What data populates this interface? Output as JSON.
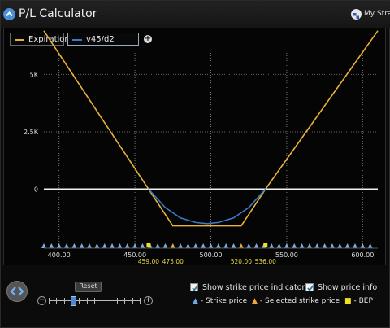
{
  "window": {
    "title": "P/L Calculator",
    "right_label": "My Stra",
    "app_icon": "caret-up-icon",
    "right_icon": "strategy-icon"
  },
  "legend": {
    "items": [
      {
        "label": "Expiration",
        "color": "#e8b23a"
      },
      {
        "label": "v45/d2",
        "color": "#3c78c8"
      }
    ],
    "add_icon": "plus-icon"
  },
  "chart_data": {
    "type": "line",
    "x_ticks": [
      "400.00",
      "450.00",
      "500.00",
      "550.00",
      "600.00"
    ],
    "y_ticks": [
      "5K",
      "2.5K",
      "0"
    ],
    "xlim": [
      390,
      610
    ],
    "ylim": [
      -2500,
      7000
    ],
    "series": [
      {
        "name": "Expiration",
        "color": "#e8b23a",
        "x": [
          390,
          459,
          475,
          520,
          536,
          610
        ],
        "y": [
          6900,
          0,
          -1600,
          -1600,
          0,
          6900
        ]
      },
      {
        "name": "v45/d2",
        "color": "#3c78c8",
        "x": [
          459,
          470,
          480,
          490,
          497.5,
          505,
          515,
          525,
          536
        ],
        "y": [
          0,
          -800,
          -1250,
          -1450,
          -1500,
          -1450,
          -1250,
          -800,
          0
        ]
      }
    ],
    "zero_line": 0,
    "strike_prices": [
      390,
      395,
      400,
      405,
      410,
      415,
      420,
      425,
      430,
      435,
      440,
      445,
      450,
      455,
      460,
      465,
      470,
      480,
      485,
      490,
      495,
      500,
      505,
      510,
      515,
      525,
      530,
      535,
      540,
      545,
      550,
      555,
      560,
      565,
      570,
      575,
      580,
      585,
      590,
      595,
      600,
      605
    ],
    "selected_strikes": [
      475,
      520
    ],
    "bep": [
      {
        "x": 459,
        "label": "459.00"
      },
      {
        "x": 536,
        "label": "536.00"
      }
    ],
    "selected_labels": [
      {
        "x": 475,
        "label": "475.00"
      },
      {
        "x": 520,
        "label": "520.00"
      }
    ]
  },
  "controls": {
    "reset_label": "Reset",
    "nav_icon": "arrows-left-right-icon",
    "zoom_out_icon": "minus-icon",
    "zoom_in_icon": "plus-icon",
    "zoom_level": 0.27,
    "show_strike_label": "Show strike price indicators",
    "show_price_label": "Show price info",
    "show_strike_checked": true,
    "show_price_checked": true,
    "key_strike": "- Strike price",
    "key_selected": "- Selected strike price",
    "key_bep": "- BEP"
  }
}
